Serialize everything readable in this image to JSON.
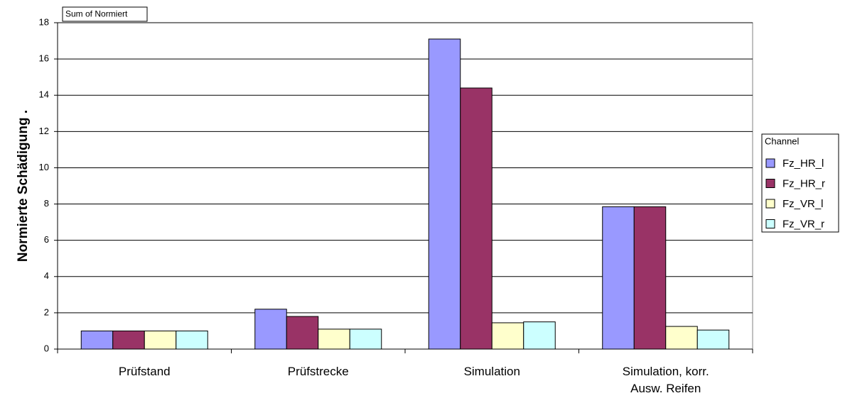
{
  "chart_data": {
    "type": "bar",
    "data_field": "Sum of Normiert",
    "y_label": "Normierte Schädigung .",
    "legend_title": "Channel",
    "legend_position": "right",
    "categories": [
      "Prüfstand",
      "Prüfstrecke",
      "Simulation",
      "Simulation, korr. Ausw. Reifen"
    ],
    "series": [
      {
        "name": "Fz_HR_l",
        "color": "#9999ff",
        "values": [
          1,
          2.2,
          17.1,
          7.85
        ]
      },
      {
        "name": "Fz_HR_r",
        "color": "#993366",
        "values": [
          1,
          1.8,
          14.4,
          7.85
        ]
      },
      {
        "name": "Fz_VR_l",
        "color": "#ffffcc",
        "values": [
          1,
          1.1,
          1.45,
          1.25
        ]
      },
      {
        "name": "Fz_VR_r",
        "color": "#ccffff",
        "values": [
          1,
          1.1,
          1.5,
          1.05
        ]
      }
    ],
    "ylim": [
      0,
      18
    ],
    "yticks": [
      0,
      2,
      4,
      6,
      8,
      10,
      12,
      14,
      16,
      18
    ],
    "grid": true
  }
}
